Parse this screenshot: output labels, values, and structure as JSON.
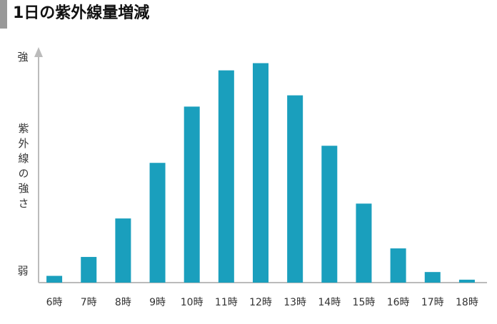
{
  "chart_data": {
    "type": "bar",
    "title": "1日の紫外線量増減",
    "y_label": "紫外線の強さ",
    "categories": [
      "6時",
      "7時",
      "8時",
      "9時",
      "10時",
      "11時",
      "12時",
      "13時",
      "14時",
      "15時",
      "16時",
      "17時",
      "18時"
    ],
    "values": [
      3,
      11.4,
      28.5,
      53.2,
      78.2,
      94.3,
      97.5,
      83.2,
      60.8,
      35.1,
      15.2,
      4.7,
      1.3
    ],
    "color": "#1a9fbd",
    "ylim": [
      0,
      104
    ],
    "yticks": [
      {
        "value": 5,
        "label": "弱"
      },
      {
        "value": 100,
        "label": "強"
      }
    ],
    "grid": false
  }
}
